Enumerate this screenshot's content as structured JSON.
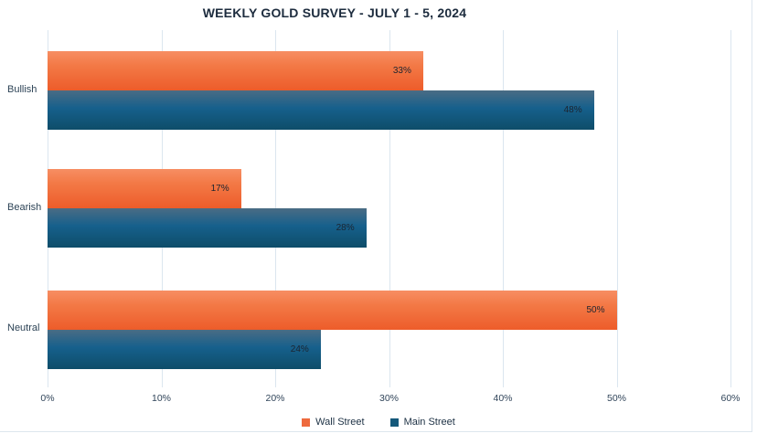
{
  "chart_data": {
    "type": "bar",
    "orientation": "horizontal",
    "title": "WEEKLY GOLD SURVEY - JULY 1 - 5, 2024",
    "categories": [
      "Bullish",
      "Bearish",
      "Neutral"
    ],
    "series": [
      {
        "name": "Wall Street",
        "color": "#ee6a3d",
        "values": [
          33,
          17,
          50
        ]
      },
      {
        "name": "Main Street",
        "color": "#14587a",
        "values": [
          48,
          28,
          24
        ]
      }
    ],
    "value_labels": [
      [
        "33%",
        "17%",
        "50%"
      ],
      [
        "48%",
        "28%",
        "24%"
      ]
    ],
    "x_ticks": [
      "0%",
      "10%",
      "20%",
      "30%",
      "40%",
      "50%",
      "60%"
    ],
    "xlim": [
      0,
      60
    ],
    "value_suffix": "%",
    "grid": "vertical",
    "legend_position": "bottom",
    "legend_entries": [
      "Wall Street",
      "Main Street"
    ]
  },
  "colors": {
    "wall_street": "#ee6a3d",
    "main_street": "#14587a",
    "title_text": "#1d2c3e",
    "axis_text": "#31455a",
    "gridline": "#dbe6ef",
    "background": "#ffffff"
  }
}
